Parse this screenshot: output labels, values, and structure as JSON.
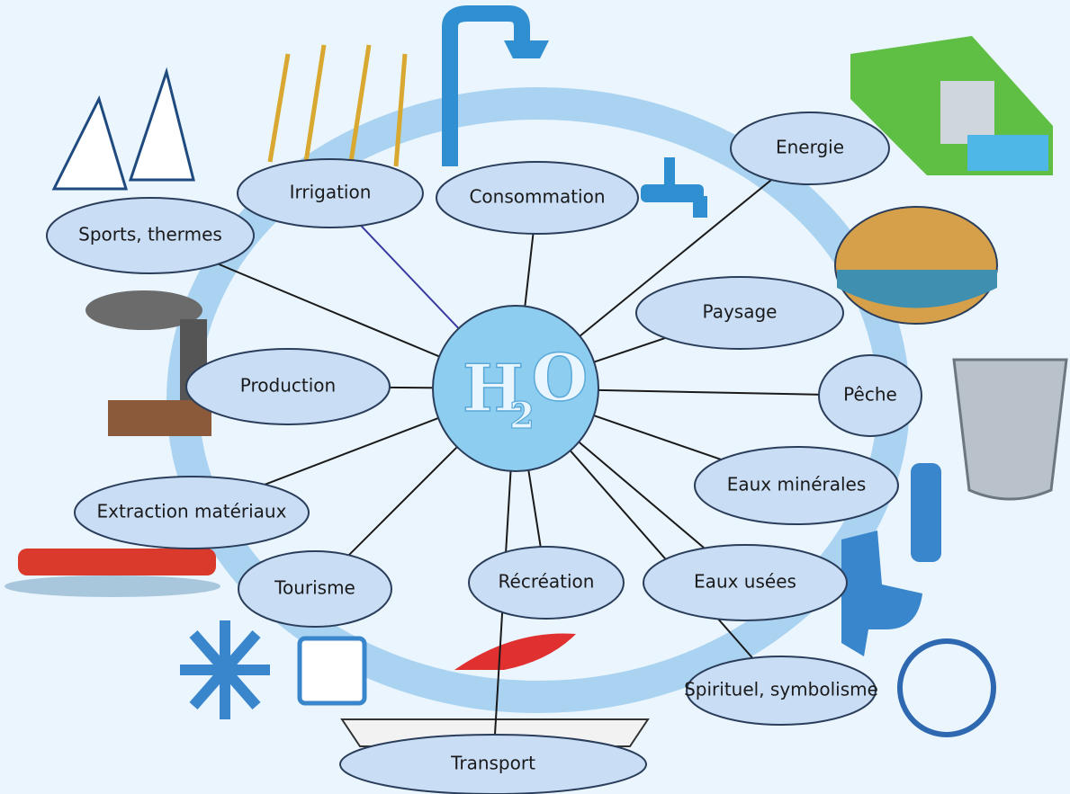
{
  "center": {
    "base": "H",
    "sub": "2",
    "tail": "O"
  },
  "nodes": [
    {
      "label": "Irrigation"
    },
    {
      "label": "Consommation"
    },
    {
      "label": "Energie"
    },
    {
      "label": "Sports, thermes"
    },
    {
      "label": "Paysage"
    },
    {
      "label": "Production"
    },
    {
      "label": "Pêche"
    },
    {
      "label": "Eaux minérales"
    },
    {
      "label": "Extraction matériaux"
    },
    {
      "label": "Tourisme"
    },
    {
      "label": "Récréation"
    },
    {
      "label": "Eaux usées"
    },
    {
      "label": "Spirituel, symbolisme"
    },
    {
      "label": "Transport"
    }
  ]
}
